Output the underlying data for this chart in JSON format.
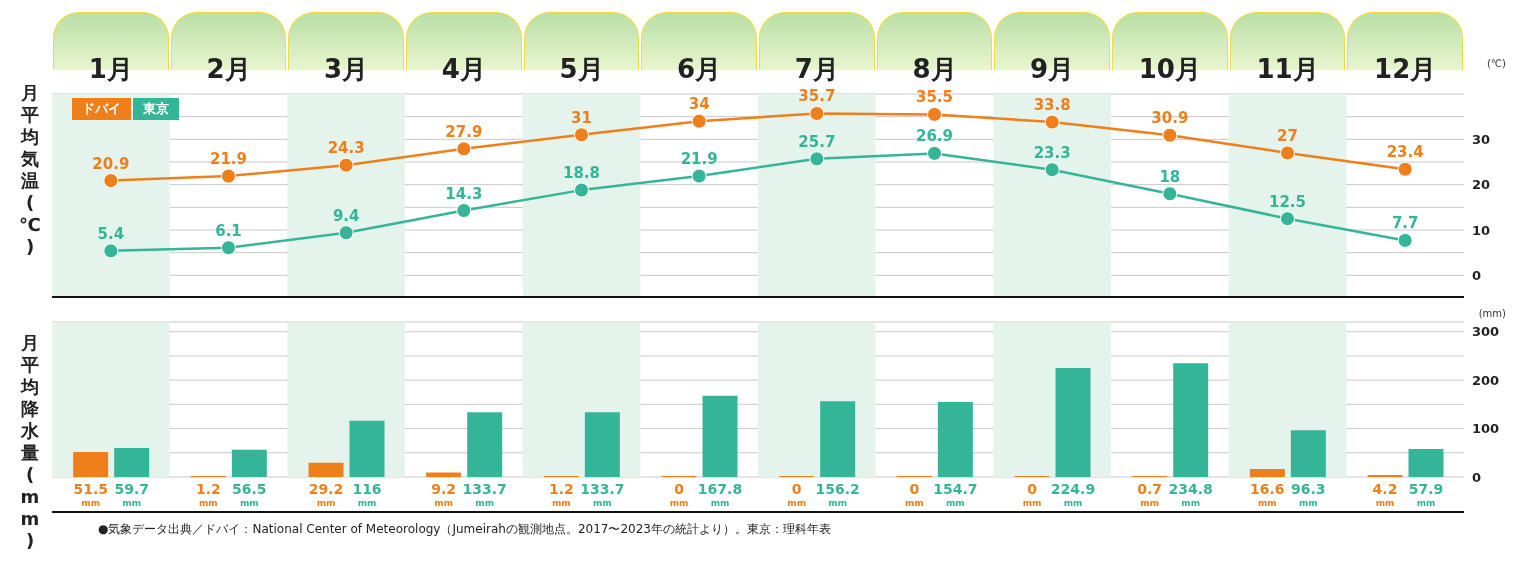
{
  "chart_data": [
    {
      "type": "line",
      "ylabel": "月平均気温(℃)",
      "annotations": [
        "(℃)"
      ],
      "categories": [
        "1月",
        "2月",
        "3月",
        "4月",
        "5月",
        "6月",
        "7月",
        "8月",
        "9月",
        "10月",
        "11月",
        "12月"
      ],
      "series": [
        {
          "name": "ドバイ",
          "color": "#ee7f1a",
          "values": [
            20.9,
            21.9,
            24.3,
            27.9,
            31,
            34,
            35.7,
            35.5,
            33.8,
            30.9,
            27,
            23.4
          ]
        },
        {
          "name": "東京",
          "color": "#35b597",
          "values": [
            5.4,
            6.1,
            9.4,
            14.3,
            18.8,
            21.9,
            25.7,
            26.9,
            23.3,
            18,
            12.5,
            7.7
          ]
        }
      ],
      "bands": [
        {
          "axis": "x",
          "from": "1月",
          "to": "1月",
          "color": "#e4f3ec"
        },
        {
          "axis": "x",
          "from": "3月",
          "to": "3月",
          "color": "#e4f3ec"
        },
        {
          "axis": "x",
          "from": "5月",
          "to": "5月",
          "color": "#e4f3ec"
        },
        {
          "axis": "x",
          "from": "7月",
          "to": "7月",
          "color": "#e4f3ec"
        },
        {
          "axis": "x",
          "from": "9月",
          "to": "9月",
          "color": "#e4f3ec"
        },
        {
          "axis": "x",
          "from": "11月",
          "to": "11月",
          "color": "#e4f3ec"
        }
      ],
      "ylim": [
        -5,
        40
      ],
      "yticks": [
        0,
        {
          "value": 5,
          "label": null
        },
        10,
        {
          "value": 15,
          "label": null
        },
        20,
        {
          "value": 25,
          "label": null
        },
        30,
        {
          "value": 35,
          "label": null
        }
      ],
      "grid": "y",
      "legend": "top left",
      "marker": "circle",
      "data_labels": true
    },
    {
      "type": "bar",
      "ylabel": "月平均降水量(mm)",
      "annotations": [
        "(mm)",
        "mm",
        "●気象データ出典／ドバイ：National Center of Meteorology（Jumeirahの観測地点。2017〜2023年の統計より）。東京：理科年表"
      ],
      "categories": [
        "1月",
        "2月",
        "3月",
        "4月",
        "5月",
        "6月",
        "7月",
        "8月",
        "9月",
        "10月",
        "11月",
        "12月"
      ],
      "series": [
        {
          "color": "#ee7f1a",
          "values": [
            51.5,
            1.2,
            29.2,
            9.2,
            1.2,
            0,
            0,
            0,
            0,
            0.7,
            16.6,
            4.2
          ]
        },
        {
          "color": "#35b597",
          "values": [
            59.7,
            56.5,
            116,
            133.7,
            133.7,
            167.8,
            156.2,
            154.7,
            224.9,
            234.8,
            96.3,
            57.9
          ]
        }
      ],
      "bands": [
        {
          "axis": "x",
          "from": "1月",
          "to": "1月",
          "color": "#e4f3ec"
        },
        {
          "axis": "x",
          "from": "3月",
          "to": "3月",
          "color": "#e4f3ec"
        },
        {
          "axis": "x",
          "from": "5月",
          "to": "5月",
          "color": "#e4f3ec"
        },
        {
          "axis": "x",
          "from": "7月",
          "to": "7月",
          "color": "#e4f3ec"
        },
        {
          "axis": "x",
          "from": "9月",
          "to": "9月",
          "color": "#e4f3ec"
        },
        {
          "axis": "x",
          "from": "11月",
          "to": "11月",
          "color": "#e4f3ec"
        }
      ],
      "ylim": [
        0,
        320
      ],
      "yticks": [
        0,
        {
          "value": 50,
          "label": null
        },
        100,
        {
          "value": 150,
          "label": null
        },
        200,
        {
          "value": 250,
          "label": null
        },
        300
      ],
      "grid": "y",
      "tick_labels": "y",
      "data_labels": true
    }
  ]
}
